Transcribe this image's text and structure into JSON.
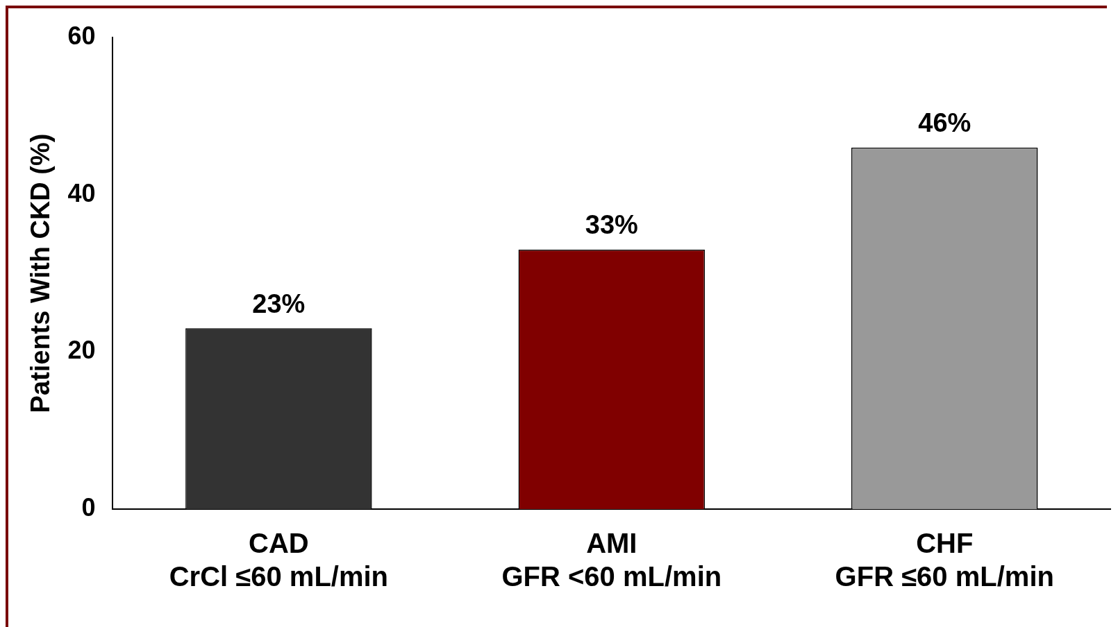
{
  "chart_data": {
    "type": "bar",
    "ylabel": "Patients With CKD (%)",
    "categories": [
      "CAD\nCrCl ≤60 mL/min",
      "AMI\nGFR <60 mL/min",
      "CHF\nGFR ≤60 mL/min"
    ],
    "values": [
      23,
      33,
      46
    ],
    "colors": [
      "#333333",
      "#800000",
      "#999999"
    ],
    "value_labels": [
      "23%",
      "33%",
      "46%"
    ],
    "ylim": [
      0,
      60
    ],
    "yticks": [
      0,
      20,
      40,
      60
    ],
    "grid": false,
    "legend": false
  }
}
